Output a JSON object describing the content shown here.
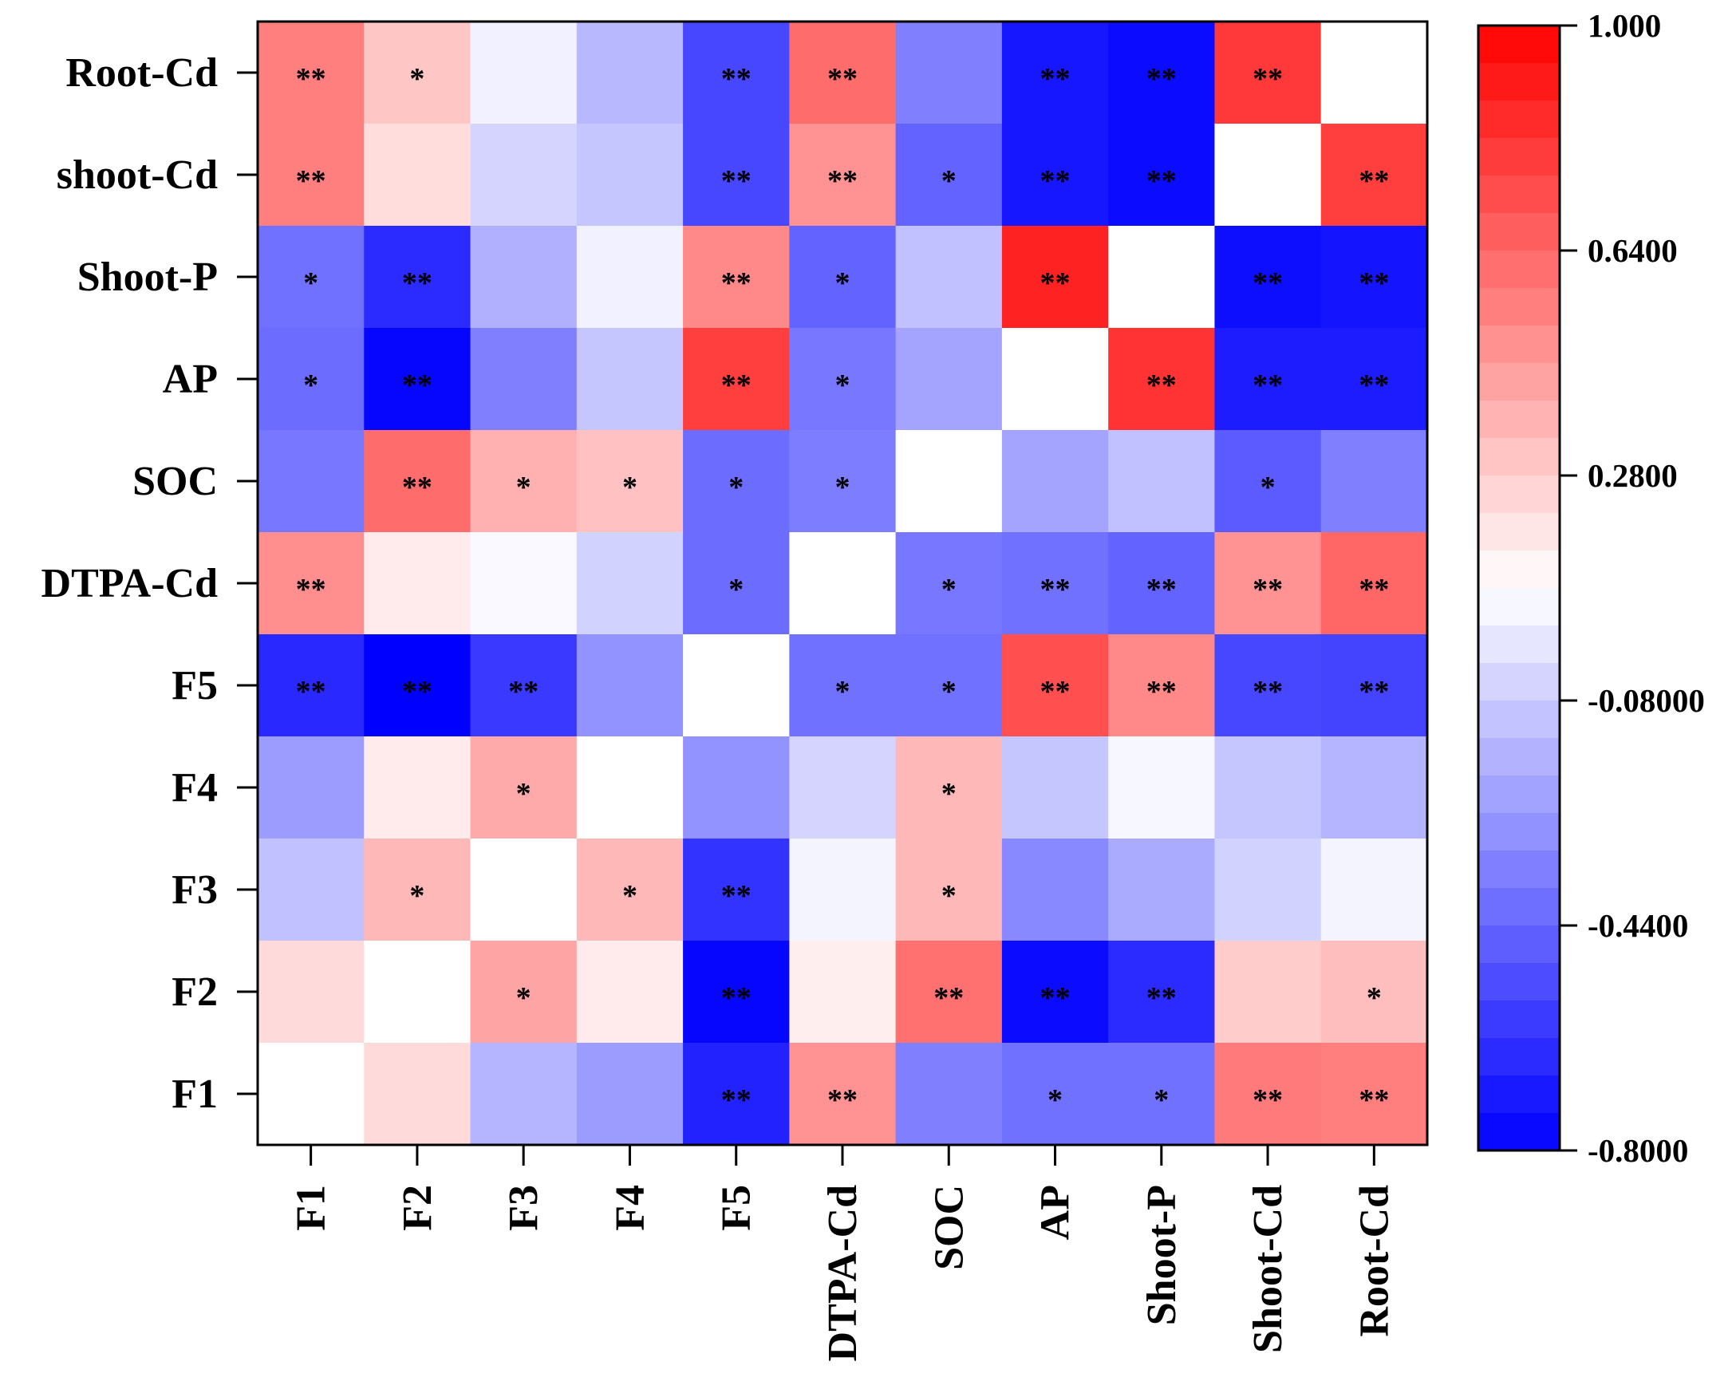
{
  "chart_data": {
    "type": "heatmap",
    "x_labels": [
      "F1",
      "F2",
      "F3",
      "F4",
      "F5",
      "DTPA-Cd",
      "SOC",
      "AP",
      "Shoot-P",
      "Shoot-Cd",
      "Root-Cd"
    ],
    "y_labels": [
      "Root-Cd",
      "shoot-Cd",
      "Shoot-P",
      "AP",
      "SOC",
      "DTPA-Cd",
      "F5",
      "F4",
      "F3",
      "F2",
      "F1"
    ],
    "values": [
      [
        0.55,
        0.3,
        0.05,
        -0.15,
        -0.55,
        0.62,
        -0.35,
        -0.72,
        -0.76,
        0.8,
        null
      ],
      [
        0.55,
        0.22,
        -0.05,
        -0.1,
        -0.55,
        0.48,
        -0.45,
        -0.72,
        -0.76,
        null,
        0.78
      ],
      [
        -0.4,
        -0.65,
        -0.18,
        0.05,
        0.52,
        -0.45,
        -0.12,
        0.88,
        null,
        -0.75,
        -0.73
      ],
      [
        -0.42,
        -0.78,
        -0.35,
        -0.1,
        0.78,
        -0.38,
        -0.22,
        null,
        0.82,
        -0.7,
        -0.7
      ],
      [
        -0.38,
        0.62,
        0.38,
        0.32,
        -0.42,
        -0.36,
        null,
        -0.22,
        -0.12,
        -0.48,
        -0.35
      ],
      [
        0.5,
        0.17,
        0.08,
        -0.06,
        -0.42,
        null,
        -0.38,
        -0.4,
        -0.45,
        0.48,
        0.64
      ],
      [
        -0.66,
        -0.8,
        -0.6,
        -0.28,
        null,
        -0.4,
        -0.4,
        0.72,
        0.52,
        -0.55,
        -0.56
      ],
      [
        -0.25,
        0.17,
        0.4,
        null,
        -0.28,
        -0.05,
        0.35,
        -0.1,
        0.07,
        -0.1,
        -0.16
      ],
      [
        -0.12,
        0.35,
        null,
        0.35,
        -0.62,
        0.06,
        0.35,
        -0.32,
        -0.2,
        -0.06,
        0.06
      ],
      [
        0.23,
        null,
        0.42,
        0.17,
        -0.78,
        0.16,
        0.6,
        -0.76,
        -0.65,
        0.28,
        0.33
      ],
      [
        null,
        0.23,
        -0.16,
        -0.25,
        -0.68,
        0.48,
        -0.35,
        -0.4,
        -0.4,
        0.57,
        0.55
      ]
    ],
    "significance": [
      [
        "**",
        "*",
        "",
        "",
        "**",
        "**",
        "",
        "**",
        "**",
        "**",
        ""
      ],
      [
        "**",
        "",
        "",
        "",
        "**",
        "**",
        "*",
        "**",
        "**",
        "",
        "**"
      ],
      [
        "*",
        "**",
        "",
        "",
        "**",
        "*",
        "",
        "**",
        "",
        "**",
        "**"
      ],
      [
        "*",
        "**",
        "",
        "",
        "**",
        "*",
        "",
        "",
        "**",
        "**",
        "**"
      ],
      [
        "",
        "**",
        "*",
        "*",
        "*",
        "*",
        "",
        "",
        "",
        "*",
        ""
      ],
      [
        "**",
        "",
        "",
        "",
        "*",
        "",
        "*",
        "**",
        "**",
        "**",
        "**"
      ],
      [
        "**",
        "**",
        "**",
        "",
        "",
        "*",
        "*",
        "**",
        "**",
        "**",
        "**"
      ],
      [
        "",
        "",
        "*",
        "",
        "",
        "",
        "*",
        "",
        "",
        "",
        ""
      ],
      [
        "",
        "*",
        "",
        "*",
        "**",
        "",
        "*",
        "",
        "",
        "",
        ""
      ],
      [
        "",
        "",
        "*",
        "",
        "**",
        "",
        "**",
        "**",
        "**",
        "",
        "*"
      ],
      [
        "",
        "",
        "",
        "",
        "**",
        "**",
        "",
        "*",
        "*",
        "**",
        "**"
      ]
    ],
    "colorbar": {
      "min": -0.8,
      "max": 1.0,
      "tick_labels": [
        "1.000",
        "0.6400",
        "0.2800",
        "-0.08000",
        "-0.4400",
        "-0.8000"
      ],
      "tick_values": [
        1.0,
        0.64,
        0.28,
        -0.08,
        -0.44,
        -0.8
      ],
      "low_color": "#0000ff",
      "mid_color": "#ffffff",
      "high_color": "#ff0000",
      "mid_value": 0.1
    },
    "diagonal_color": "#ffffff"
  }
}
